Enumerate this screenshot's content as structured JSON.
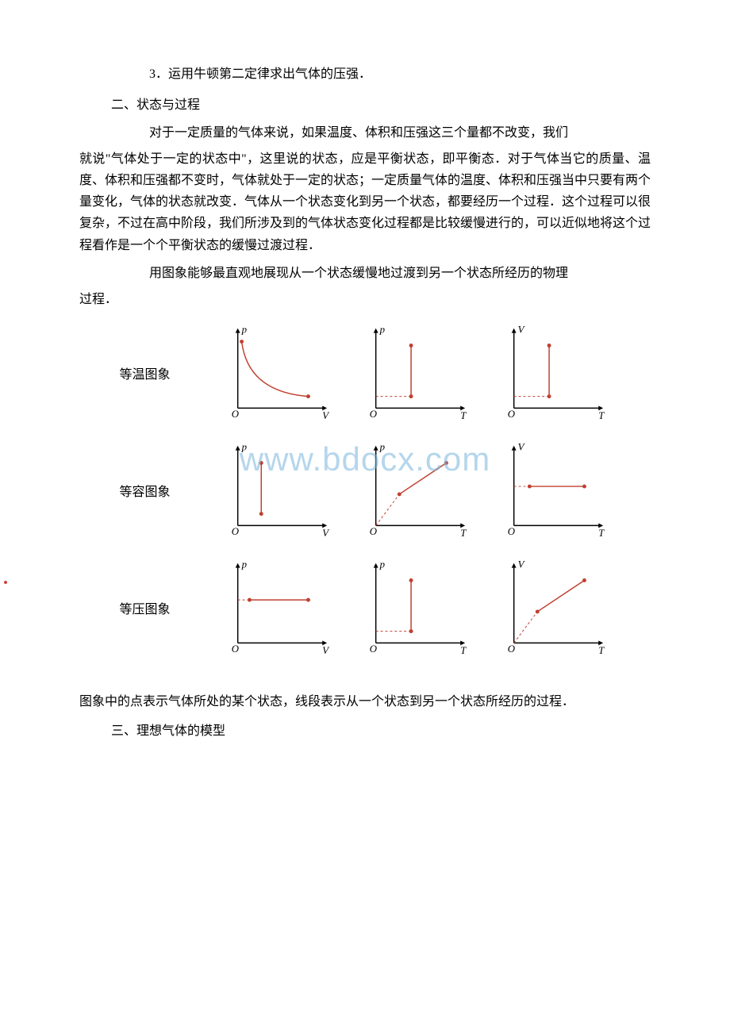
{
  "top_line": "3．运用牛顿第二定律求出气体的压强．",
  "heading2": "二、状态与过程",
  "para1_a": "对于一定质量的气体来说，如果温度、体积和压强这三个量都不改变，我们",
  "para1_b": "就说\"气体处于一定的状态中\"，这里说的状态，应是平衡状态，即平衡态．对于气体当它的质量、温度、体积和压强都不变时，气体就处于一定的状态；一定质量气体的温度、体积和压强当中只要有两个量变化，气体的状态就改变．气体从一个状态变化到另一个状态，都要经历一个过程．这个过程可以很复杂，不过在高中阶段，我们所涉及到的气体状态变化过程都是比较缓慢进行的，可以近似地将这个过程看作是一个个平衡状态的缓慢过渡过程．",
  "para2_a": "用图象能够最直观地展现从一个状态缓慢地过渡到另一个状态所经历的物理",
  "para2_b": "过程．",
  "watermark": "www.bdocx.com",
  "row1_label": "等温图象",
  "row2_label": "等容图象",
  "row3_label": "等压图象",
  "caption": "图象中的点表示气体所处的某个状态，线段表示从一个状态到另一个状态所经历的过程．",
  "heading3": "三、理想气体的模型",
  "chart_style": {
    "axis_color": "#000000",
    "axis_width": 1.5,
    "arrow_size": 6,
    "line_color": "#c04030",
    "line_width": 1.5,
    "dot_color": "#c04030",
    "dot_radius": 2.5,
    "dash_color": "#c04030",
    "dash_pattern": "3,3",
    "label_fontsize": 13,
    "label_style": "italic",
    "origin_label": "O"
  },
  "rows": [
    {
      "charts": [
        {
          "y_label": "p",
          "x_label": "V",
          "curve": "hyperbola",
          "points": [
            [
              30,
              25
            ],
            [
              115,
              95
            ]
          ],
          "dashes": []
        },
        {
          "y_label": "p",
          "x_label": "T",
          "curve": "vline",
          "points": [
            [
              70,
              30
            ],
            [
              70,
              95
            ]
          ],
          "dashes": [
            [
              [
                25,
                95
              ],
              [
                70,
                95
              ]
            ]
          ]
        },
        {
          "y_label": "V",
          "x_label": "T",
          "curve": "vline",
          "points": [
            [
              70,
              30
            ],
            [
              70,
              95
            ]
          ],
          "dashes": [
            [
              [
                25,
                95
              ],
              [
                70,
                95
              ]
            ]
          ]
        }
      ]
    },
    {
      "charts": [
        {
          "y_label": "p",
          "x_label": "V",
          "curve": "vline",
          "points": [
            [
              55,
              30
            ],
            [
              55,
              95
            ]
          ],
          "dashes": []
        },
        {
          "y_label": "p",
          "x_label": "T",
          "curve": "ray_origin",
          "points": [
            [
              55,
              70
            ],
            [
              115,
              30
            ]
          ],
          "dashes": []
        },
        {
          "y_label": "V",
          "x_label": "T",
          "curve": "hline",
          "points": [
            [
              45,
              60
            ],
            [
              115,
              60
            ]
          ],
          "dashes": [
            [
              [
                25,
                60
              ],
              [
                45,
                60
              ]
            ]
          ]
        }
      ]
    },
    {
      "charts": [
        {
          "y_label": "p",
          "x_label": "V",
          "curve": "hline",
          "points": [
            [
              40,
              55
            ],
            [
              115,
              55
            ]
          ],
          "dashes": [
            [
              [
                25,
                55
              ],
              [
                40,
                55
              ]
            ]
          ]
        },
        {
          "y_label": "p",
          "x_label": "T",
          "curve": "vline",
          "points": [
            [
              70,
              30
            ],
            [
              70,
              95
            ]
          ],
          "dashes": [
            [
              [
                25,
                95
              ],
              [
                70,
                95
              ]
            ]
          ]
        },
        {
          "y_label": "V",
          "x_label": "T",
          "curve": "ray_origin",
          "points": [
            [
              55,
              70
            ],
            [
              115,
              30
            ]
          ],
          "dashes": []
        }
      ]
    }
  ]
}
